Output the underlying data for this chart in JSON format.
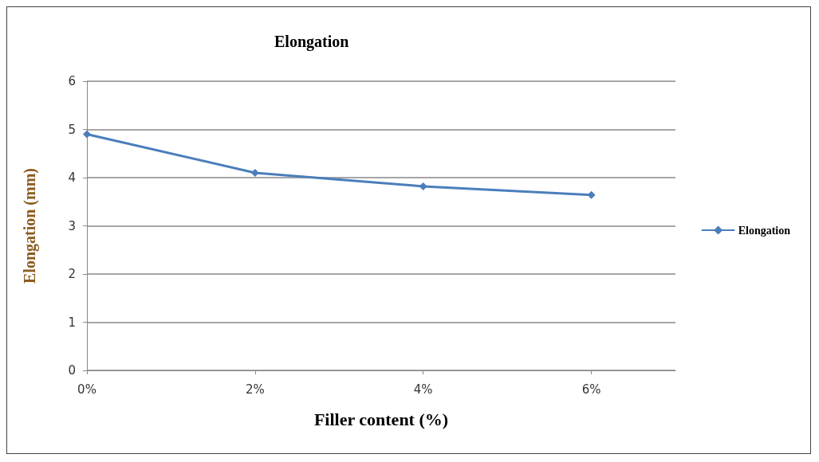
{
  "chart_data": {
    "type": "line",
    "title": "Elongation",
    "xlabel": "Filler content (%)",
    "ylabel": "Elongation (mm)",
    "x": [
      0,
      2,
      4,
      6
    ],
    "series": [
      {
        "name": "Elongation",
        "color": "#4a7ebb",
        "values": [
          4.9,
          4.1,
          3.82,
          3.64
        ]
      }
    ],
    "xlim": [
      0,
      7
    ],
    "xticks": [
      {
        "value": 0,
        "label": "0%"
      },
      {
        "value": 2,
        "label": "2%"
      },
      {
        "value": 4,
        "label": "4%"
      },
      {
        "value": 6,
        "label": "6%"
      }
    ],
    "ylim": [
      0,
      6
    ],
    "yticks": [
      0,
      1,
      2,
      3,
      4,
      5,
      6
    ],
    "grid": "y",
    "legend": "right",
    "marker": "diamond",
    "line_style": "solid"
  }
}
